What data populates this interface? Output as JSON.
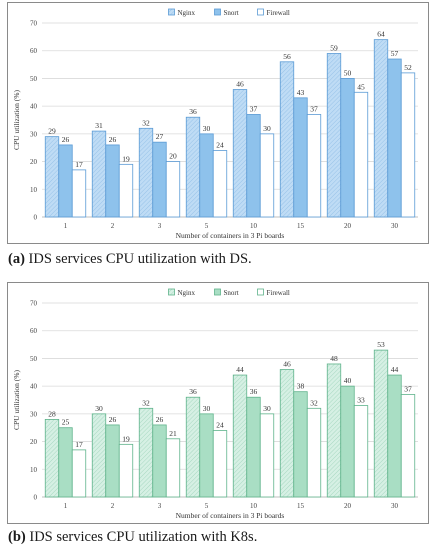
{
  "chart_data": [
    {
      "type": "bar",
      "categories": [
        "1",
        "2",
        "3",
        "5",
        "10",
        "15",
        "20",
        "30"
      ],
      "series": [
        {
          "name": "Nginx",
          "values": [
            29,
            31,
            32,
            36,
            46,
            56,
            59,
            64
          ],
          "color": "#bfdcf5",
          "stroke": "#5b9bd5",
          "pattern": "hatch"
        },
        {
          "name": "Snort",
          "values": [
            26,
            26,
            27,
            30,
            37,
            43,
            50,
            57
          ],
          "color": "#8ec2ec",
          "stroke": "#5b9bd5",
          "pattern": "solid"
        },
        {
          "name": "Firewall",
          "values": [
            17,
            19,
            20,
            24,
            30,
            37,
            45,
            52
          ],
          "color": "#ffffff",
          "stroke": "#5b9bd5",
          "pattern": "empty"
        }
      ],
      "xlabel": "Number of containers in 3 Pi boards",
      "ylabel": "CPU utilization (%)",
      "ylim": [
        0,
        70
      ],
      "yticks": [
        "0",
        "10",
        "20",
        "30",
        "40",
        "50",
        "60",
        "70"
      ],
      "grid": true,
      "legend": "top-center"
    },
    {
      "type": "bar",
      "categories": [
        "1",
        "2",
        "3",
        "5",
        "10",
        "15",
        "20",
        "30"
      ],
      "series": [
        {
          "name": "Nginx",
          "values": [
            28,
            30,
            32,
            36,
            44,
            46,
            48,
            53
          ],
          "color": "#d6f0e4",
          "stroke": "#5fb38b",
          "pattern": "hatch"
        },
        {
          "name": "Snort",
          "values": [
            25,
            26,
            26,
            30,
            36,
            38,
            40,
            44
          ],
          "color": "#a9dec4",
          "stroke": "#5fb38b",
          "pattern": "solid"
        },
        {
          "name": "Firewall",
          "values": [
            17,
            19,
            21,
            24,
            30,
            32,
            33,
            37
          ],
          "color": "#ffffff",
          "stroke": "#5fb38b",
          "pattern": "empty"
        }
      ],
      "xlabel": "Number of containers in 3 Pi boards",
      "ylabel": "CPU utilization (%)",
      "ylim": [
        0,
        70
      ],
      "yticks": [
        "0",
        "10",
        "20",
        "30",
        "40",
        "50",
        "60",
        "70"
      ],
      "grid": true,
      "legend": "top-center"
    }
  ],
  "captions": [
    {
      "label": "(a)",
      "text": " IDS services CPU utilization with DS."
    },
    {
      "label": "(b)",
      "text": " IDS services CPU utilization with K8s."
    }
  ]
}
